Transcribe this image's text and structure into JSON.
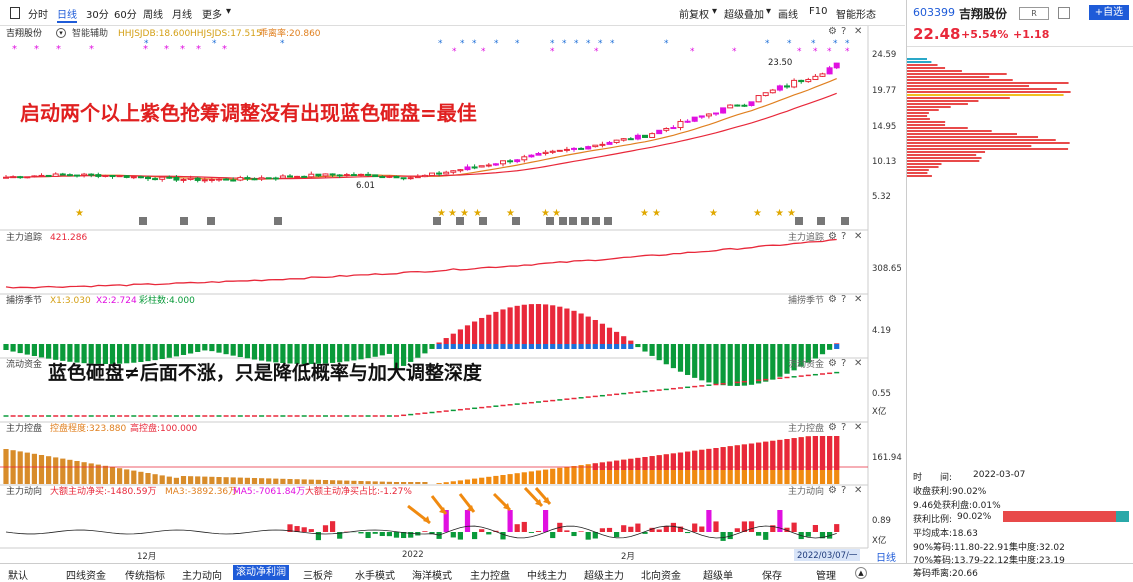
{
  "toolbar": {
    "periods": [
      "分时",
      "日线",
      "30分",
      "60分",
      "周线",
      "月线",
      "更多"
    ],
    "active_period": "日线",
    "right_items": [
      "前复权",
      "超级叠加",
      "画线",
      "F10",
      "智能形态"
    ]
  },
  "main_panel": {
    "stock_name": "吉翔股份",
    "assist": "智能辅助",
    "ind1": "HHJSJDB:18.600",
    "ind2": "HHJSJDS:17.515",
    "ind3": "乖离率:20.860",
    "y_ticks": [
      "24.59",
      "19.77",
      "14.95",
      "10.13",
      "5.32"
    ],
    "high_label": "23.50",
    "low_label": "6.01"
  },
  "panels": {
    "track": {
      "title": "主力追踪",
      "value": "421.286",
      "right": "主力追踪",
      "tick": "308.65"
    },
    "season": {
      "title": "捕捞季节",
      "x1": "X1:3.030",
      "x2": "X2:2.724",
      "cz": "彩柱数:4.000",
      "right": "捕捞季节",
      "tick": "4.19"
    },
    "flow": {
      "title": "流动资金",
      "right": "流动资金",
      "tick": "0.55",
      "unit": "X亿"
    },
    "control": {
      "title": "主力控盘",
      "degree": "控盘程度:323.880",
      "high": "高控盘:100.000",
      "right": "主力控盘",
      "tick": "161.94"
    },
    "move": {
      "title": "主力动向",
      "net": "大额主动净买:-1480.59万",
      "ma3": "MA3:-3892.36万",
      "ma5": "MA5:-7061.84万",
      "ratio": "大额主动净买占比:-1.27%",
      "right": "主力动向",
      "tick": "0.89",
      "unit": "X亿"
    }
  },
  "x_axis": [
    "12月",
    "2022",
    "2月"
  ],
  "date_box": "2022/03/07/一",
  "date_mode": "日线",
  "annotations": {
    "a1": "启动两个以上紫色抢筹调整没有出现蓝色砸盘=最佳",
    "a2": "蓝色砸盘≠后面不涨，只是降低概率与加大调整深度"
  },
  "bottom_tabs": [
    "默认",
    "四线资金",
    "传统指标",
    "主力动向",
    "滚动净利润",
    "三板斧",
    "水手模式",
    "海洋模式",
    "主力控盘",
    "中线主力",
    "超级主力",
    "北向资金",
    "超级单",
    "保存",
    "管理"
  ],
  "bottom_active": "滚动净利润",
  "quote": {
    "code": "603399",
    "name": "吉翔股份",
    "badge": "R",
    "add_label": "+自选",
    "price": "22.48",
    "pct": "+5.54%",
    "chg": "+1.18"
  },
  "chip": {
    "time_label": "时　　间:",
    "time": "2022-03-07",
    "profit": "收盘获利:90.02%",
    "profit_low": "9.46处获利盘:0.01%",
    "ratio_label": "获利比例:",
    "ratio": "90.02%",
    "ratio_frac": 0.9002,
    "avg": "平均成本:18.63",
    "c90": "90%筹码:11.80-22.91",
    "c90_conc": "集中度:32.02",
    "c70": "70%筹码:13.79-22.12",
    "c70_conc": "集中度:23.19",
    "eff": "筹码乖离:20.66"
  },
  "colors": {
    "up": "#e8283a",
    "down": "#0a9a3a",
    "purple": "#e010e0",
    "blue": "#1e6fd8",
    "accent": "#1e5bd8"
  }
}
